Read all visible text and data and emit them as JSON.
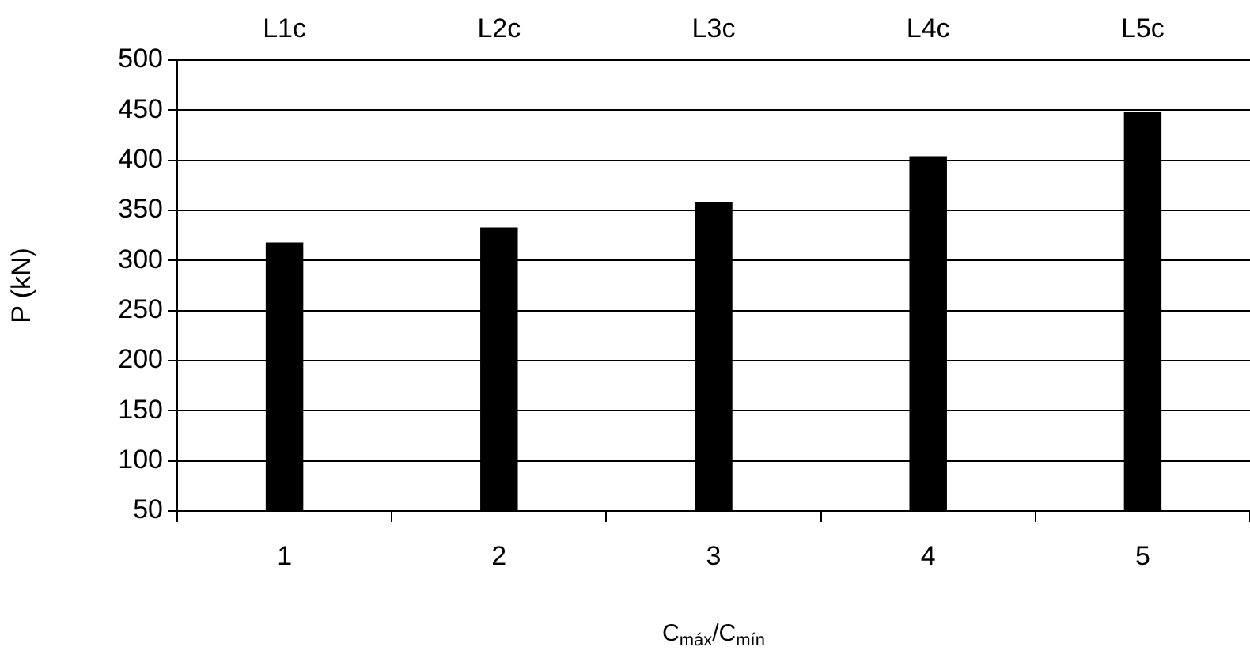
{
  "chart_data": {
    "type": "bar",
    "categories": [
      "1",
      "2",
      "3",
      "4",
      "5"
    ],
    "values": [
      318,
      333,
      358,
      404,
      448
    ],
    "color": "#000000",
    "xlabel": "C$_{máx}$/C$_{mín}$",
    "ylabel": "P (kN)",
    "ylim": [
      50,
      500
    ],
    "yticks": [
      50,
      100,
      150,
      200,
      250,
      300,
      350,
      400,
      450,
      500
    ],
    "grid": "y",
    "annotations": [
      "L1c",
      "L2c",
      "L3c",
      "L4c",
      "L5c"
    ]
  }
}
